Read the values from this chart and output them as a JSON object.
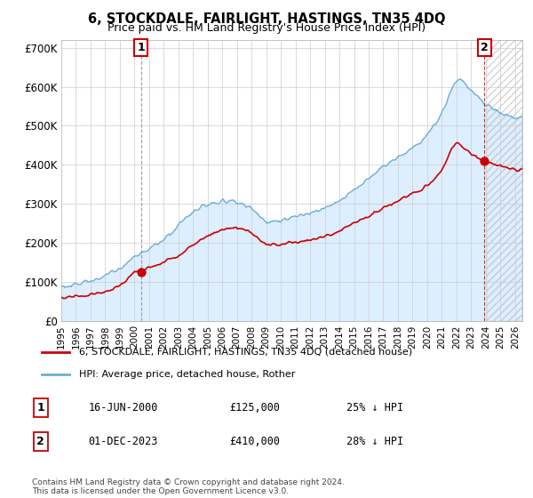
{
  "title": "6, STOCKDALE, FAIRLIGHT, HASTINGS, TN35 4DQ",
  "subtitle": "Price paid vs. HM Land Registry's House Price Index (HPI)",
  "ylabel_ticks": [
    "£0",
    "£100K",
    "£200K",
    "£300K",
    "£400K",
    "£500K",
    "£600K",
    "£700K"
  ],
  "ytick_values": [
    0,
    100000,
    200000,
    300000,
    400000,
    500000,
    600000,
    700000
  ],
  "ylim": [
    0,
    720000
  ],
  "xlim_min": 1995.0,
  "xlim_max": 2026.5,
  "price_paid_dates": [
    2000.46,
    2023.92
  ],
  "price_paid_values": [
    125000,
    410000
  ],
  "hpi_color": "#6baed6",
  "hpi_fill_color": "#ddeeff",
  "price_color": "#cc0000",
  "annotation1_label": "1",
  "annotation1_date": "16-JUN-2000",
  "annotation1_price": "£125,000",
  "annotation1_hpi": "25% ↓ HPI",
  "annotation2_label": "2",
  "annotation2_date": "01-DEC-2023",
  "annotation2_price": "£410,000",
  "annotation2_hpi": "28% ↓ HPI",
  "legend_line1": "6, STOCKDALE, FAIRLIGHT, HASTINGS, TN35 4DQ (detached house)",
  "legend_line2": "HPI: Average price, detached house, Rother",
  "footnote": "Contains HM Land Registry data © Crown copyright and database right 2024.\nThis data is licensed under the Open Government Licence v3.0.",
  "background_color": "#ffffff",
  "grid_color": "#cccccc",
  "hatch_start": 2024.0
}
